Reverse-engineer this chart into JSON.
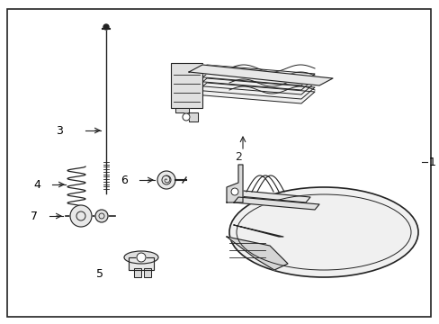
{
  "bg_color": "#ffffff",
  "border_color": "#222222",
  "line_color": "#222222",
  "label_color": "#000000",
  "figsize": [
    4.89,
    3.6
  ],
  "dpi": 100
}
